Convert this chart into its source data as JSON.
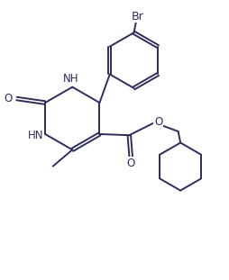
{
  "bg_color": "#ffffff",
  "line_color": "#2d2d5e",
  "line_width": 1.4,
  "font_size": 8.5,
  "figsize": [
    2.54,
    3.11
  ],
  "dpi": 100,
  "xlim": [
    0,
    10
  ],
  "ylim": [
    0,
    12.2
  ]
}
